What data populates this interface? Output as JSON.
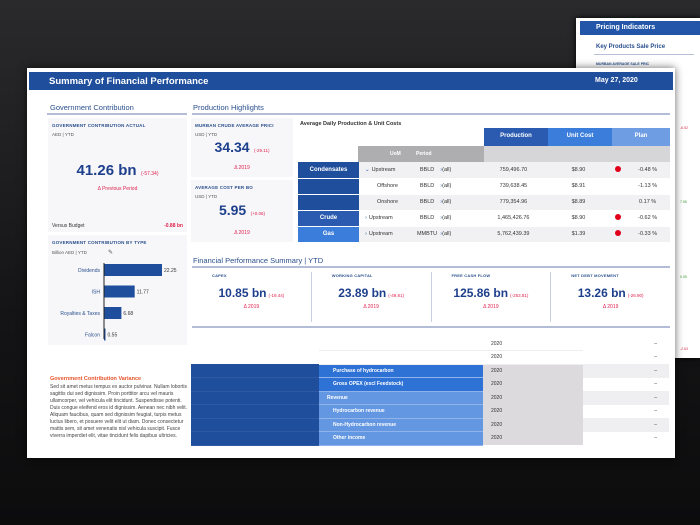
{
  "back_panel": {
    "title": "Pricing Indicators",
    "subtitle": "Key Products Sale Price",
    "card_label": "MURBAN AVERAGE SALE PRIC",
    "edge_values": [
      {
        "text": "-6.52",
        "color": "#d9304c"
      },
      {
        "text": "7.95",
        "color": "#3a9a3a"
      },
      {
        "text": "0.05",
        "color": "#3a9a3a"
      },
      {
        "text": "-2.63",
        "color": "#d9304c"
      }
    ]
  },
  "header": {
    "title": "Summary of Financial Performance",
    "date": "May 27, 2020"
  },
  "gov": {
    "heading": "Government Contribution",
    "actual": {
      "label": "GOVERNMENT CONTRIBUTION ACTUAL",
      "unit": "AED | YTD",
      "value": "41.26 bn",
      "delta": "(-57.34)",
      "period": "Δ Previous Period",
      "budget_label": "Versus Budget",
      "budget_value": "-0.88 bn"
    },
    "by_type": {
      "label": "GOVERNMENT CONTRIBUTION BY TYPE",
      "unit": "Billion AED | YTD",
      "chart_data": {
        "type": "bar",
        "orientation": "horizontal",
        "categories": [
          "Dividends",
          "ISH",
          "Royalties & Taxes",
          "Falcon"
        ],
        "values": [
          22.25,
          11.77,
          6.68,
          0.55
        ],
        "labels": [
          "22.25",
          "11.77",
          "6.68",
          "0.55"
        ],
        "color": "#1f4e9c"
      }
    },
    "variance": {
      "title": "Government Contribution Variance",
      "text": "Sed sit amet metus tempus ex auctor pulvinar. Nullam lobortis sagittis dui sed dignissim. Proin porttitor arcu vel mauris ullamcorper, vel vehicula elit tincidunt. Suspendisse potenti. Duis congue eleifend eros id dignissim. Aenean nec nibh velit. Aliquam faucibus, quam sed dignissim feugiat, turpis metus luctus libero, et posuere velit elit ut diam. Donec consectetur mattis sem, sit amet venenatis nisl vehicula suscipit. Fusce viverra imperdiet elit, vitae tincidunt felis dapibus ultricies."
    }
  },
  "prod": {
    "heading": "Production Highlights",
    "murban": {
      "label": "MURBAN CRUDE AVERAGE PRICI",
      "unit": "USD | YTD",
      "value": "34.34",
      "delta": "(-29.11)",
      "period": "Δ 2019"
    },
    "cost": {
      "label": "AVERAGE COST PER BO",
      "unit": "USD | YTD",
      "value": "5.95",
      "delta": "(+0.06)",
      "period": "Δ 2019"
    },
    "table": {
      "title": "Average Daily Production & Unit Costs",
      "headers": [
        "Production",
        "Unit Cost",
        "Plan"
      ],
      "subheaders": [
        "UoM",
        "Period"
      ],
      "rows": [
        {
          "group": "Condensates",
          "item": "Upstream",
          "arrow": "⌄",
          "uom": "BBLD",
          "period": "(all)",
          "production": "759,496.70",
          "unit_cost": "$8.90",
          "flag": true,
          "plan": "-0.48 %"
        },
        {
          "group": "",
          "item": "Offshore",
          "arrow": "",
          "uom": "BBLD",
          "period": "(all)",
          "production": "739,638.45",
          "unit_cost": "$8.91",
          "flag": false,
          "plan": "-1.13 %"
        },
        {
          "group": "",
          "item": "Onshore",
          "arrow": "",
          "uom": "BBLD",
          "period": "(all)",
          "production": "779,354.96",
          "unit_cost": "$8.89",
          "flag": false,
          "plan": "0.17 %"
        },
        {
          "group": "Crude",
          "item": "Upstream",
          "arrow": "›",
          "uom": "BBLD",
          "period": "(all)",
          "production": "1,465,426.76",
          "unit_cost": "$8.90",
          "flag": true,
          "plan": "-0.62 %"
        },
        {
          "group": "Gas",
          "item": "Upstream",
          "arrow": "›",
          "uom": "MMBTU",
          "period": "(all)",
          "production": "5,762,439.39",
          "unit_cost": "$1.39",
          "flag": true,
          "plan": "-0.33 %"
        }
      ]
    }
  },
  "fin": {
    "heading": "Financial Performance Summary | YTD",
    "kpis": [
      {
        "label": "CAPEX",
        "value": "10.85 bn",
        "delta": "(-19.44)",
        "period": "Δ 2019"
      },
      {
        "label": "WORKING CAPITAL",
        "value": "23.89 bn",
        "delta": "(-49.81)",
        "period": "Δ 2019"
      },
      {
        "label": "FREE CASH FLOW",
        "value": "125.86 bn",
        "delta": "(-253.81)",
        "period": "Δ 2019"
      },
      {
        "label": "NET DEBT MOVEMENT",
        "value": "13.26 bn",
        "delta": "(-26.90)",
        "period": "Δ 2019"
      }
    ]
  },
  "bottom": {
    "rows": [
      {
        "label": "",
        "year": "2020",
        "value": "–"
      },
      {
        "label": "",
        "year": "2020",
        "value": "–"
      },
      {
        "label": "Purchase of hydrocarbon",
        "year": "2020",
        "value": "–"
      },
      {
        "label": "Gross OPEX (excl Feedstock)",
        "year": "2020",
        "value": "–"
      },
      {
        "label": "Revenue",
        "year": "2020",
        "value": "–"
      },
      {
        "label": "Hydrocarbon revenue",
        "year": "2020",
        "value": "–"
      },
      {
        "label": "Non-Hydrocarbon revenue",
        "year": "2020",
        "value": "–"
      },
      {
        "label": "Other income",
        "year": "2020",
        "value": "–"
      }
    ]
  }
}
